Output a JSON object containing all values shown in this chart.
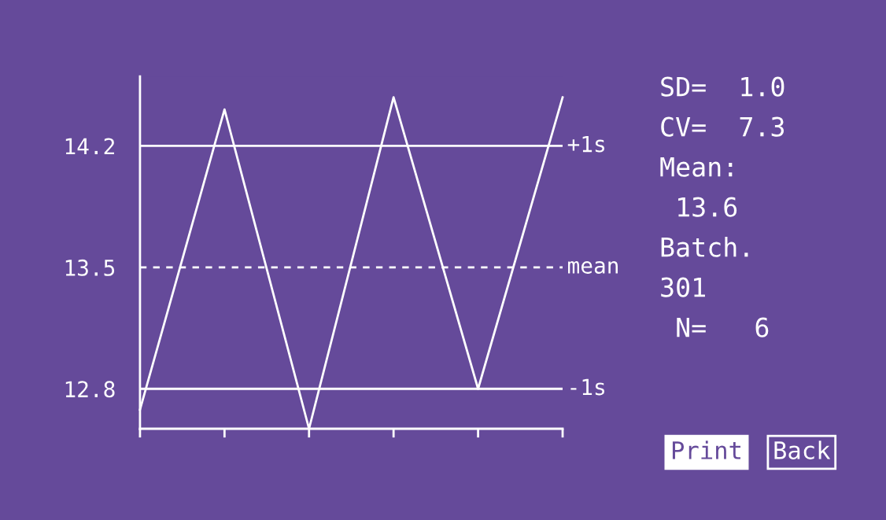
{
  "chart_data": {
    "type": "line",
    "categories": [
      null,
      null,
      null,
      null,
      null,
      null
    ],
    "series": [
      {
        "color": "#ffffff",
        "values": [
          12.68,
          14.41,
          12.57,
          14.48,
          12.8,
          14.48
        ]
      }
    ],
    "ylim": [
      12.57,
      14.6
    ],
    "yticks": [
      12.8,
      13.5,
      14.2
    ],
    "ref_lines": [
      {
        "axis": "y",
        "value": 14.2,
        "label": "+1s",
        "color": "#ffffff",
        "line_style": "solid"
      },
      {
        "axis": "y",
        "value": 13.5,
        "label": "mean",
        "color": "#ffffff",
        "line_style": "dashed"
      },
      {
        "axis": "y",
        "value": 12.8,
        "label": "-1s",
        "color": "#ffffff",
        "line_style": "solid"
      }
    ],
    "annotations": [
      "SD=  1.0",
      "CV=  7.3",
      "Mean:",
      " 13.6",
      "Batch.",
      "301",
      " N=   6",
      "Print",
      "Back"
    ],
    "tick_labels": "y",
    "grid": false,
    "legend": false,
    "marker": "none",
    "line_style": "solid"
  }
}
